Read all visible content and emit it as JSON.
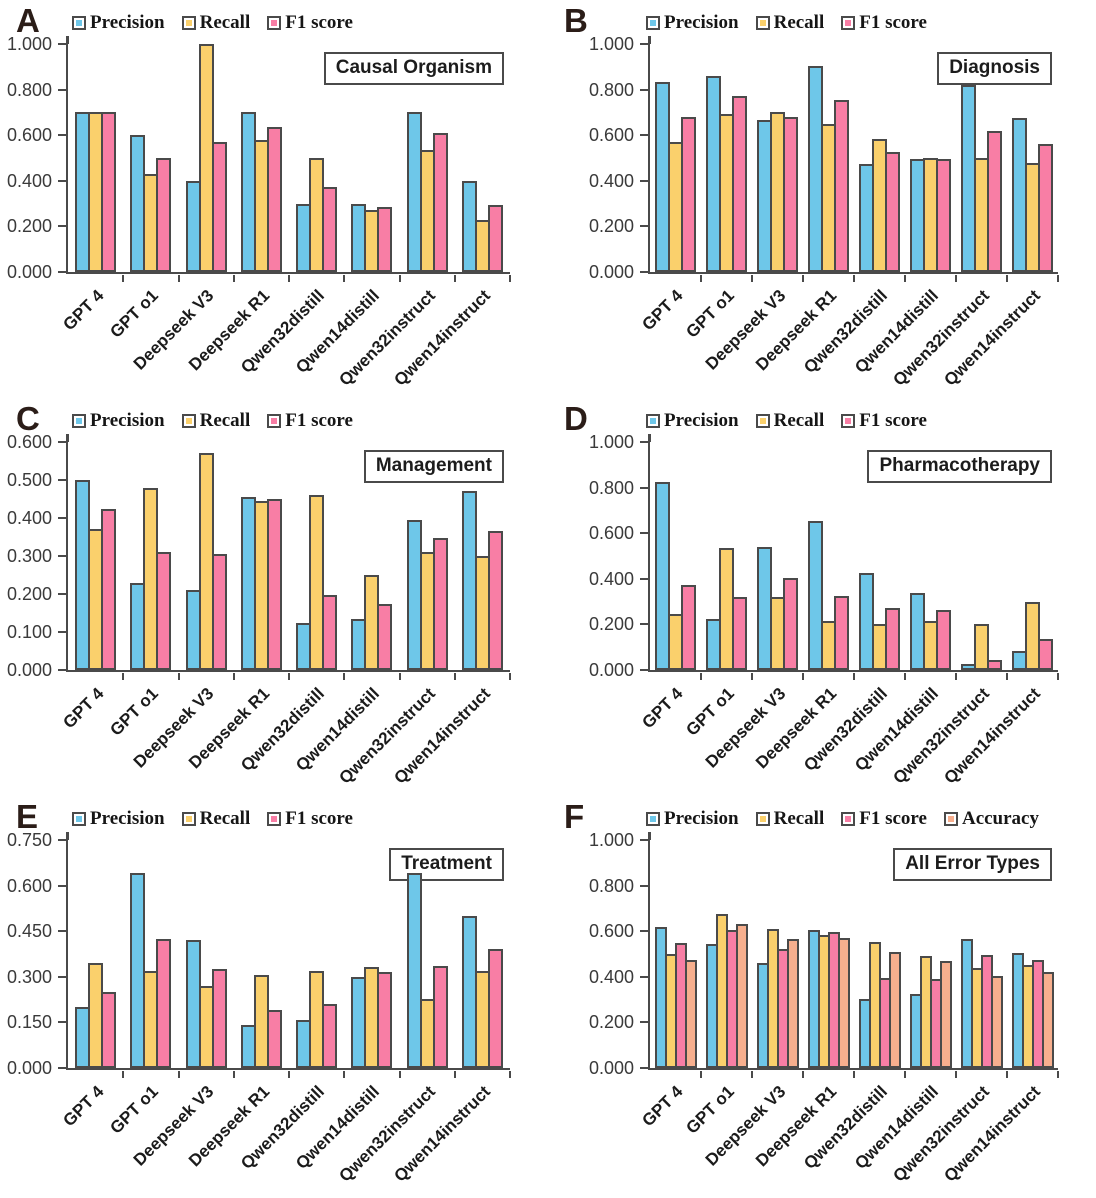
{
  "colors": {
    "precision": "#6ec7e9",
    "recall": "#fad06c",
    "f1": "#f87ea5",
    "accuracy": "#f7af8e",
    "bar_border": "#4a4a4a",
    "axis": "#4a4a4a",
    "text": "#1b1b1b"
  },
  "categories": [
    "GPT 4",
    "GPT o1",
    "Deepseek V3",
    "Deepseek R1",
    "Qwen32distill",
    "Qwen14distill",
    "Qwen32instruct",
    "Qwen14instruct"
  ],
  "chart_data": [
    {
      "letter": "A",
      "type": "bar",
      "title": "Causal Organism",
      "ymax": 1.0,
      "ylim": [
        0,
        1.0
      ],
      "grid": false,
      "legend_position": "top",
      "yticks": [
        "1.000",
        "0.800",
        "0.600",
        "0.400",
        "0.200",
        "0.000"
      ],
      "series": [
        {
          "name": "Precision",
          "color_key": "precision",
          "values": [
            0.7,
            0.6,
            0.4,
            0.7,
            0.3,
            0.3,
            0.7,
            0.4
          ]
        },
        {
          "name": "Recall",
          "color_key": "recall",
          "values": [
            0.7,
            0.43,
            1.0,
            0.58,
            0.5,
            0.27,
            0.535,
            0.23
          ]
        },
        {
          "name": "F1 score",
          "color_key": "f1",
          "values": [
            0.7,
            0.5,
            0.57,
            0.635,
            0.375,
            0.285,
            0.61,
            0.295
          ]
        }
      ]
    },
    {
      "letter": "B",
      "type": "bar",
      "title": "Diagnosis",
      "ymax": 1.0,
      "ylim": [
        0,
        1.0
      ],
      "grid": false,
      "legend_position": "top",
      "yticks": [
        "1.000",
        "0.800",
        "0.600",
        "0.400",
        "0.200",
        "0.000"
      ],
      "series": [
        {
          "name": "Precision",
          "color_key": "precision",
          "values": [
            0.835,
            0.86,
            0.665,
            0.905,
            0.475,
            0.495,
            0.82,
            0.675
          ]
        },
        {
          "name": "Recall",
          "color_key": "recall",
          "values": [
            0.57,
            0.695,
            0.7,
            0.65,
            0.585,
            0.5,
            0.5,
            0.48
          ]
        },
        {
          "name": "F1 score",
          "color_key": "f1",
          "values": [
            0.68,
            0.77,
            0.68,
            0.755,
            0.525,
            0.497,
            0.62,
            0.56
          ]
        }
      ]
    },
    {
      "letter": "C",
      "type": "bar",
      "title": "Management",
      "ymax": 0.6,
      "ylim": [
        0,
        0.6
      ],
      "grid": false,
      "legend_position": "top",
      "yticks": [
        "0.600",
        "0.500",
        "0.400",
        "0.300",
        "0.200",
        "0.100",
        "0.000"
      ],
      "series": [
        {
          "name": "Precision",
          "color_key": "precision",
          "values": [
            0.5,
            0.23,
            0.21,
            0.455,
            0.125,
            0.135,
            0.395,
            0.47
          ]
        },
        {
          "name": "Recall",
          "color_key": "recall",
          "values": [
            0.37,
            0.48,
            0.57,
            0.445,
            0.46,
            0.25,
            0.31,
            0.3
          ]
        },
        {
          "name": "F1 score",
          "color_key": "f1",
          "values": [
            0.425,
            0.31,
            0.305,
            0.45,
            0.197,
            0.175,
            0.348,
            0.365
          ]
        }
      ]
    },
    {
      "letter": "D",
      "type": "bar",
      "title": "Pharmacotherapy",
      "ymax": 1.0,
      "ylim": [
        0,
        1.0
      ],
      "grid": false,
      "legend_position": "top",
      "yticks": [
        "1.000",
        "0.800",
        "0.600",
        "0.400",
        "0.200",
        "0.000"
      ],
      "series": [
        {
          "name": "Precision",
          "color_key": "precision",
          "values": [
            0.825,
            0.225,
            0.54,
            0.655,
            0.425,
            0.34,
            0.025,
            0.085
          ]
        },
        {
          "name": "Recall",
          "color_key": "recall",
          "values": [
            0.245,
            0.535,
            0.32,
            0.215,
            0.2,
            0.215,
            0.2,
            0.3
          ]
        },
        {
          "name": "F1 score",
          "color_key": "f1",
          "values": [
            0.375,
            0.32,
            0.405,
            0.325,
            0.27,
            0.265,
            0.045,
            0.135
          ]
        }
      ]
    },
    {
      "letter": "E",
      "type": "bar",
      "title": "Treatment",
      "ymax": 0.75,
      "ylim": [
        0,
        0.75
      ],
      "grid": false,
      "legend_position": "top",
      "yticks": [
        "0.750",
        "0.600",
        "0.450",
        "0.300",
        "0.150",
        "0.000"
      ],
      "series": [
        {
          "name": "Precision",
          "color_key": "precision",
          "values": [
            0.2,
            0.64,
            0.42,
            0.14,
            0.157,
            0.3,
            0.64,
            0.5
          ]
        },
        {
          "name": "Recall",
          "color_key": "recall",
          "values": [
            0.345,
            0.32,
            0.27,
            0.305,
            0.32,
            0.333,
            0.227,
            0.32
          ]
        },
        {
          "name": "F1 score",
          "color_key": "f1",
          "values": [
            0.25,
            0.425,
            0.327,
            0.19,
            0.212,
            0.315,
            0.335,
            0.39
          ]
        }
      ]
    },
    {
      "letter": "F",
      "type": "bar",
      "title": "All Error Types",
      "ymax": 1.0,
      "ylim": [
        0,
        1.0
      ],
      "grid": false,
      "legend_position": "top",
      "yticks": [
        "1.000",
        "0.800",
        "0.600",
        "0.400",
        "0.200",
        "0.000"
      ],
      "series": [
        {
          "name": "Precision",
          "color_key": "precision",
          "values": [
            0.62,
            0.545,
            0.46,
            0.605,
            0.305,
            0.325,
            0.565,
            0.505
          ]
        },
        {
          "name": "Recall",
          "color_key": "recall",
          "values": [
            0.5,
            0.675,
            0.61,
            0.585,
            0.555,
            0.49,
            0.44,
            0.45
          ]
        },
        {
          "name": "F1 score",
          "color_key": "f1",
          "values": [
            0.55,
            0.605,
            0.52,
            0.595,
            0.395,
            0.39,
            0.495,
            0.475
          ]
        },
        {
          "name": "Accuracy",
          "color_key": "accuracy",
          "values": [
            0.475,
            0.63,
            0.565,
            0.57,
            0.51,
            0.47,
            0.405,
            0.42
          ]
        }
      ]
    }
  ]
}
